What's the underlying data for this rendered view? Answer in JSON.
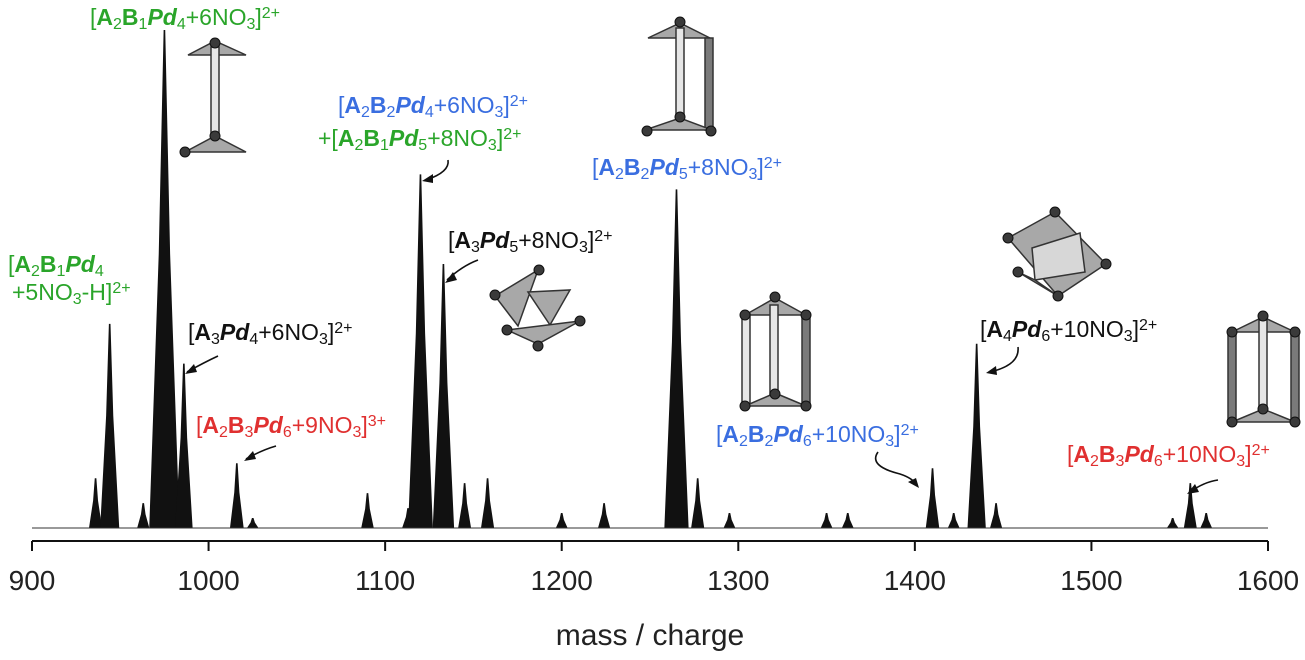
{
  "chart_data": {
    "type": "area",
    "xlabel": "mass / charge",
    "ylabel": "",
    "xlim": [
      900,
      1600
    ],
    "ylim": [
      0,
      100
    ],
    "x_ticks": [
      900,
      1000,
      1100,
      1200,
      1300,
      1400,
      1500,
      1600
    ],
    "grid": false,
    "peaks": [
      {
        "x": 936,
        "y": 10
      },
      {
        "x": 944,
        "y": 41
      },
      {
        "x": 963,
        "y": 5
      },
      {
        "x": 975,
        "y": 100
      },
      {
        "x": 986,
        "y": 33
      },
      {
        "x": 1016,
        "y": 13
      },
      {
        "x": 1025,
        "y": 2
      },
      {
        "x": 1090,
        "y": 7
      },
      {
        "x": 1113,
        "y": 4
      },
      {
        "x": 1120,
        "y": 71
      },
      {
        "x": 1133,
        "y": 53
      },
      {
        "x": 1145,
        "y": 9
      },
      {
        "x": 1158,
        "y": 10
      },
      {
        "x": 1200,
        "y": 3
      },
      {
        "x": 1224,
        "y": 5
      },
      {
        "x": 1265,
        "y": 68
      },
      {
        "x": 1277,
        "y": 10
      },
      {
        "x": 1295,
        "y": 3
      },
      {
        "x": 1350,
        "y": 3
      },
      {
        "x": 1362,
        "y": 3
      },
      {
        "x": 1410,
        "y": 12
      },
      {
        "x": 1422,
        "y": 3
      },
      {
        "x": 1435,
        "y": 37
      },
      {
        "x": 1446,
        "y": 5
      },
      {
        "x": 1546,
        "y": 2
      },
      {
        "x": 1556,
        "y": 9
      },
      {
        "x": 1565,
        "y": 3
      }
    ]
  },
  "annotations": [
    {
      "id": "a2b1pd4-6no3",
      "color": "#2aa52a",
      "parts": [
        {
          "t": "[",
          "b": false,
          "i": false
        },
        {
          "t": "A",
          "b": true,
          "i": false
        },
        {
          "t": "2",
          "sub": true,
          "b": false,
          "i": false
        },
        {
          "t": "B",
          "b": true,
          "i": false
        },
        {
          "t": "1",
          "sub": true,
          "b": false,
          "i": false
        },
        {
          "t": "Pd",
          "b": true,
          "i": true
        },
        {
          "t": "4",
          "sub": true,
          "b": false,
          "i": false
        },
        {
          "t": "+6NO",
          "b": false,
          "i": false
        },
        {
          "t": "3",
          "sub": true,
          "b": false,
          "i": false
        },
        {
          "t": "]",
          "b": false,
          "i": false
        },
        {
          "t": "2+",
          "sup": true,
          "b": false,
          "i": false
        }
      ]
    },
    {
      "id": "a2b1pd4-5no3h",
      "color": "#2aa52a",
      "parts": [
        {
          "t": "[",
          "b": false,
          "i": false
        },
        {
          "t": "A",
          "b": true,
          "i": false
        },
        {
          "t": "2",
          "sub": true,
          "b": false,
          "i": false
        },
        {
          "t": "B",
          "b": true,
          "i": false
        },
        {
          "t": "1",
          "sub": true,
          "b": false,
          "i": false
        },
        {
          "t": "Pd",
          "b": true,
          "i": true
        },
        {
          "t": "4",
          "sub": true,
          "b": false,
          "i": false
        }
      ],
      "parts2": [
        {
          "t": "+5NO",
          "b": false,
          "i": false
        },
        {
          "t": "3",
          "sub": true,
          "b": false,
          "i": false
        },
        {
          "t": "-H]",
          "b": false,
          "i": false
        },
        {
          "t": "2+",
          "sup": true,
          "b": false,
          "i": false
        }
      ]
    },
    {
      "id": "a3pd4-6no3",
      "color": "#111111",
      "parts": [
        {
          "t": "[",
          "b": false,
          "i": false
        },
        {
          "t": "A",
          "b": true,
          "i": false
        },
        {
          "t": "3",
          "sub": true,
          "b": false,
          "i": false
        },
        {
          "t": "Pd",
          "b": true,
          "i": true
        },
        {
          "t": "4",
          "sub": true,
          "b": false,
          "i": false
        },
        {
          "t": "+6NO",
          "b": false,
          "i": false
        },
        {
          "t": "3",
          "sub": true,
          "b": false,
          "i": false
        },
        {
          "t": "]",
          "b": false,
          "i": false
        },
        {
          "t": "2+",
          "sup": true,
          "b": false,
          "i": false
        }
      ]
    },
    {
      "id": "a2b3pd6-9no3",
      "color": "#e03030",
      "parts": [
        {
          "t": "[",
          "b": false,
          "i": false
        },
        {
          "t": "A",
          "b": true,
          "i": false
        },
        {
          "t": "2",
          "sub": true,
          "b": false,
          "i": false
        },
        {
          "t": "B",
          "b": true,
          "i": false
        },
        {
          "t": "3",
          "sub": true,
          "b": false,
          "i": false
        },
        {
          "t": "Pd",
          "b": true,
          "i": true
        },
        {
          "t": "6",
          "sub": true,
          "b": false,
          "i": false
        },
        {
          "t": "+9NO",
          "b": false,
          "i": false
        },
        {
          "t": "3",
          "sub": true,
          "b": false,
          "i": false
        },
        {
          "t": "]",
          "b": false,
          "i": false
        },
        {
          "t": "3+",
          "sup": true,
          "b": false,
          "i": false
        }
      ]
    },
    {
      "id": "a2b2pd4-6no3",
      "color": "#3a6ee0",
      "parts": [
        {
          "t": "[",
          "b": false,
          "i": false
        },
        {
          "t": "A",
          "b": true,
          "i": false
        },
        {
          "t": "2",
          "sub": true,
          "b": false,
          "i": false
        },
        {
          "t": "B",
          "b": true,
          "i": false
        },
        {
          "t": "2",
          "sub": true,
          "b": false,
          "i": false
        },
        {
          "t": "Pd",
          "b": true,
          "i": true
        },
        {
          "t": "4",
          "sub": true,
          "b": false,
          "i": false
        },
        {
          "t": "+6NO",
          "b": false,
          "i": false
        },
        {
          "t": "3",
          "sub": true,
          "b": false,
          "i": false
        },
        {
          "t": "]",
          "b": false,
          "i": false
        },
        {
          "t": "2+",
          "sup": true,
          "b": false,
          "i": false
        }
      ]
    },
    {
      "id": "a2b1pd5-8no3",
      "color": "#2aa52a",
      "parts": [
        {
          "t": "+[",
          "b": false,
          "i": false
        },
        {
          "t": "A",
          "b": true,
          "i": false
        },
        {
          "t": "2",
          "sub": true,
          "b": false,
          "i": false
        },
        {
          "t": "B",
          "b": true,
          "i": false
        },
        {
          "t": "1",
          "sub": true,
          "b": false,
          "i": false
        },
        {
          "t": "Pd",
          "b": true,
          "i": true
        },
        {
          "t": "5",
          "sub": true,
          "b": false,
          "i": false
        },
        {
          "t": "+8NO",
          "b": false,
          "i": false
        },
        {
          "t": "3",
          "sub": true,
          "b": false,
          "i": false
        },
        {
          "t": "]",
          "b": false,
          "i": false
        },
        {
          "t": "2+",
          "sup": true,
          "b": false,
          "i": false
        }
      ]
    },
    {
      "id": "a3pd5-8no3",
      "color": "#111111",
      "parts": [
        {
          "t": "[",
          "b": false,
          "i": false
        },
        {
          "t": "A",
          "b": true,
          "i": false
        },
        {
          "t": "3",
          "sub": true,
          "b": false,
          "i": false
        },
        {
          "t": "Pd",
          "b": true,
          "i": true
        },
        {
          "t": "5",
          "sub": true,
          "b": false,
          "i": false
        },
        {
          "t": "+8NO",
          "b": false,
          "i": false
        },
        {
          "t": "3",
          "sub": true,
          "b": false,
          "i": false
        },
        {
          "t": "]",
          "b": false,
          "i": false
        },
        {
          "t": "2+",
          "sup": true,
          "b": false,
          "i": false
        }
      ]
    },
    {
      "id": "a2b2pd5-8no3",
      "color": "#3a6ee0",
      "parts": [
        {
          "t": "[",
          "b": false,
          "i": false
        },
        {
          "t": "A",
          "b": true,
          "i": false
        },
        {
          "t": "2",
          "sub": true,
          "b": false,
          "i": false
        },
        {
          "t": "B",
          "b": true,
          "i": false
        },
        {
          "t": "2",
          "sub": true,
          "b": false,
          "i": false
        },
        {
          "t": "Pd",
          "b": true,
          "i": true
        },
        {
          "t": "5",
          "sub": true,
          "b": false,
          "i": false
        },
        {
          "t": "+8NO",
          "b": false,
          "i": false
        },
        {
          "t": "3",
          "sub": true,
          "b": false,
          "i": false
        },
        {
          "t": "]",
          "b": false,
          "i": false
        },
        {
          "t": "2+",
          "sup": true,
          "b": false,
          "i": false
        }
      ]
    },
    {
      "id": "a2b2pd6-10no3",
      "color": "#3a6ee0",
      "parts": [
        {
          "t": "[",
          "b": false,
          "i": false
        },
        {
          "t": "A",
          "b": true,
          "i": false
        },
        {
          "t": "2",
          "sub": true,
          "b": false,
          "i": false
        },
        {
          "t": "B",
          "b": true,
          "i": false
        },
        {
          "t": "2",
          "sub": true,
          "b": false,
          "i": false
        },
        {
          "t": "Pd",
          "b": true,
          "i": true
        },
        {
          "t": "6",
          "sub": true,
          "b": false,
          "i": false
        },
        {
          "t": "+10NO",
          "b": false,
          "i": false
        },
        {
          "t": "3",
          "sub": true,
          "b": false,
          "i": false
        },
        {
          "t": "]",
          "b": false,
          "i": false
        },
        {
          "t": "2+",
          "sup": true,
          "b": false,
          "i": false
        }
      ]
    },
    {
      "id": "a4pd6-10no3",
      "color": "#111111",
      "parts": [
        {
          "t": "[",
          "b": false,
          "i": false
        },
        {
          "t": "A",
          "b": true,
          "i": false
        },
        {
          "t": "4",
          "sub": true,
          "b": false,
          "i": false
        },
        {
          "t": "Pd",
          "b": true,
          "i": true
        },
        {
          "t": "6",
          "sub": true,
          "b": false,
          "i": false
        },
        {
          "t": "+10NO",
          "b": false,
          "i": false
        },
        {
          "t": "3",
          "sub": true,
          "b": false,
          "i": false
        },
        {
          "t": "]",
          "b": false,
          "i": false
        },
        {
          "t": "2+",
          "sup": true,
          "b": false,
          "i": false
        }
      ]
    },
    {
      "id": "a2b3pd6-10no3",
      "color": "#e03030",
      "parts": [
        {
          "t": "[",
          "b": false,
          "i": false
        },
        {
          "t": "A",
          "b": true,
          "i": false
        },
        {
          "t": "2",
          "sub": true,
          "b": false,
          "i": false
        },
        {
          "t": "B",
          "b": true,
          "i": false
        },
        {
          "t": "3",
          "sub": true,
          "b": false,
          "i": false
        },
        {
          "t": "Pd",
          "b": true,
          "i": true
        },
        {
          "t": "6",
          "sub": true,
          "b": false,
          "i": false
        },
        {
          "t": "+10NO",
          "b": false,
          "i": false
        },
        {
          "t": "3",
          "sub": true,
          "b": false,
          "i": false
        },
        {
          "t": "]",
          "b": false,
          "i": false
        },
        {
          "t": "2+",
          "sup": true,
          "b": false,
          "i": false
        }
      ]
    }
  ],
  "colors": {
    "green": "#2aa52a",
    "blue": "#3a6ee0",
    "red": "#e03030",
    "black": "#111111",
    "spectrum": "#111111"
  },
  "icons": [
    "cage-a2b1pd4-icon",
    "cage-a2b2pd5-icon",
    "cage-a3pd5-icon",
    "cage-a4pd6-icon",
    "cage-a2b2pd6-icon",
    "cage-a2b3pd6-icon"
  ]
}
